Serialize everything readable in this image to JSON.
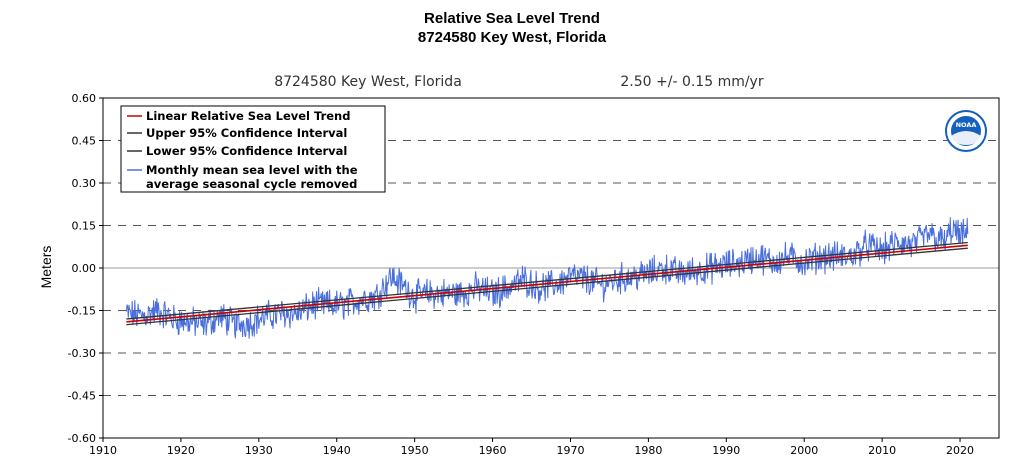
{
  "title_line1": "Relative Sea Level Trend",
  "title_line2": "8724580 Key West, Florida",
  "station_label": "8724580 Key West, Florida",
  "trend_label": "2.50 +/-  0.15 mm/yr",
  "logo_text": "NOAA",
  "colors": {
    "trend": "#cc0000",
    "confidence": "#333333",
    "monthly": "#4a6fdc",
    "grid": "#555555",
    "zero_line": "#999999",
    "logo_blue": "#1560bd"
  },
  "chart_data": {
    "type": "line",
    "title": "Relative Sea Level Trend",
    "ylabel": "Meters",
    "xlabel": "",
    "xlim": [
      1910,
      2025
    ],
    "ylim": [
      -0.6,
      0.6
    ],
    "x_ticks": [
      1910,
      1920,
      1930,
      1940,
      1950,
      1960,
      1970,
      1980,
      1990,
      2000,
      2010,
      2020
    ],
    "y_ticks": [
      0.6,
      0.45,
      0.3,
      0.15,
      0.0,
      -0.15,
      -0.3,
      -0.45,
      -0.6
    ],
    "y_tick_labels": [
      "0.60",
      "0.45",
      "0.30",
      "0.15",
      "0.00",
      "-0.15",
      "-0.30",
      "-0.45",
      "-0.60"
    ],
    "grid": "horizontal dashed",
    "legend_position": "top-left",
    "series": [
      {
        "name": "Linear Relative Sea Level Trend",
        "kind": "line",
        "x": [
          1913,
          2021
        ],
        "y": [
          -0.19,
          0.08
        ]
      },
      {
        "name": "Upper 95% Confidence Interval",
        "kind": "line",
        "x": [
          1913,
          2021
        ],
        "y": [
          -0.18,
          0.09
        ]
      },
      {
        "name": "Lower 95% Confidence Interval",
        "kind": "line",
        "x": [
          1913,
          2021
        ],
        "y": [
          -0.2,
          0.07
        ]
      },
      {
        "name": "Monthly mean sea level with the average seasonal cycle removed",
        "legend_lines": [
          "Monthly mean sea level with the",
          "average seasonal cycle removed"
        ],
        "kind": "noisy",
        "x": [
          1913,
          1915,
          1917,
          1919,
          1921,
          1923,
          1925,
          1927,
          1929,
          1931,
          1933,
          1935,
          1937,
          1939,
          1941,
          1943,
          1945,
          1947,
          1948,
          1950,
          1952,
          1954,
          1956,
          1958,
          1960,
          1962,
          1964,
          1966,
          1968,
          1970,
          1972,
          1974,
          1976,
          1978,
          1980,
          1982,
          1984,
          1986,
          1988,
          1990,
          1992,
          1994,
          1996,
          1998,
          2000,
          2002,
          2004,
          2006,
          2008,
          2010,
          2012,
          2014,
          2016,
          2018,
          2019,
          2020,
          2021
        ],
        "y": [
          -0.16,
          -0.17,
          -0.15,
          -0.18,
          -0.19,
          -0.2,
          -0.17,
          -0.2,
          -0.19,
          -0.17,
          -0.16,
          -0.16,
          -0.13,
          -0.13,
          -0.13,
          -0.11,
          -0.1,
          -0.03,
          -0.05,
          -0.1,
          -0.09,
          -0.09,
          -0.09,
          -0.07,
          -0.09,
          -0.07,
          -0.04,
          -0.07,
          -0.06,
          -0.03,
          -0.04,
          -0.06,
          -0.04,
          -0.03,
          -0.02,
          0.0,
          -0.02,
          -0.01,
          0.0,
          0.01,
          0.02,
          0.04,
          0.02,
          0.04,
          0.02,
          0.04,
          0.04,
          0.04,
          0.08,
          0.06,
          0.09,
          0.08,
          0.12,
          0.09,
          0.14,
          0.11,
          0.12
        ]
      }
    ]
  }
}
